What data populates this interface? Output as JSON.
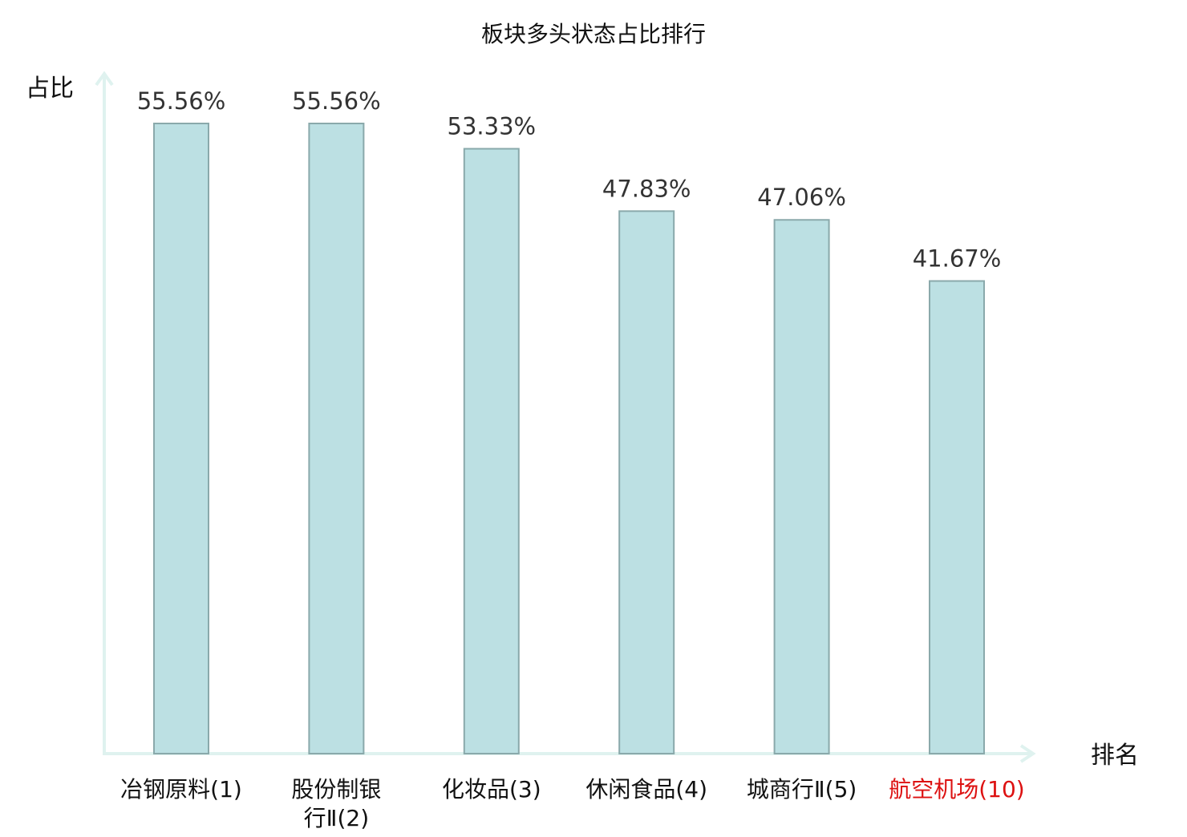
{
  "chart_data": {
    "type": "bar",
    "title": "板块多头状态占比排行",
    "ylabel": "占比",
    "xlabel": "排名",
    "categories": [
      [
        "冶钢原料(1)"
      ],
      [
        "股份制银",
        "行Ⅱ(2)"
      ],
      [
        "化妆品(3)"
      ],
      [
        "休闲食品(4)"
      ],
      [
        "城商行Ⅱ(5)"
      ],
      [
        "航空机场(10)"
      ]
    ],
    "values": [
      55.56,
      55.56,
      53.33,
      47.83,
      47.06,
      41.67
    ],
    "value_labels": [
      "55.56%",
      "55.56%",
      "53.33%",
      "47.83%",
      "47.06%",
      "41.67%"
    ],
    "highlight_index": 5,
    "ylim": [
      0,
      60
    ],
    "grid": false,
    "colors": {
      "bar_fill": "#bce0e3",
      "bar_stroke": "#8aa9ab",
      "axis": "#dff2ef",
      "text": "#111111",
      "value_text": "#333333",
      "highlight_text": "#dd1111"
    }
  }
}
